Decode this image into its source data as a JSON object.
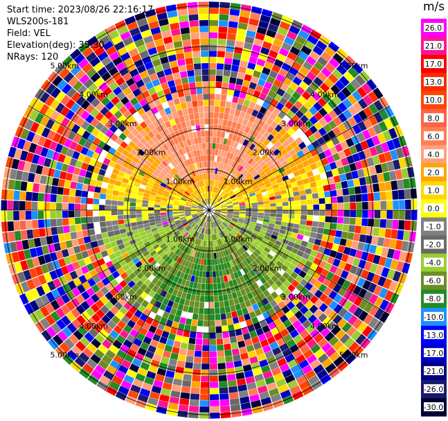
{
  "header": {
    "start_time": "Start time: 2023/08/26 22:16:17",
    "instrument": "WLS200s-181",
    "field": "Field: VEL",
    "elevation": "Elevation(deg): 35.30",
    "nrays": "NRays: 120"
  },
  "chart_data": {
    "type": "heatmap",
    "projection": "polar PPI",
    "field": "VEL",
    "units": "m/s",
    "nrays": 120,
    "range_rings_km": [
      "1.00km",
      "2.00km",
      "3.00km",
      "4.00km",
      "5.00km"
    ],
    "max_range_km": 5.1,
    "colorbar": {
      "unit_label": "m/s",
      "ticks": [
        "26.0",
        "21.0",
        "17.0",
        "13.0",
        "10.0",
        "8.0",
        "6.0",
        "4.0",
        "2.0",
        "1.0",
        "0.0",
        "-1.0",
        "-2.0",
        "-4.0",
        "-6.0",
        "-8.0",
        "-10.0",
        "-13.0",
        "-17.0",
        "-21.0",
        "-26.0",
        "-30.0"
      ],
      "colors": [
        "#ff00ff",
        "#ff1493",
        "#ff0000",
        "#ff2a00",
        "#ff4500",
        "#ff6347",
        "#ff7f50",
        "#ffa07a",
        "#ffa500",
        "#ffd700",
        "#ffff00",
        "#808080",
        "#696969",
        "#9acd32",
        "#6b8e23",
        "#228b22",
        "#1e90ff",
        "#0000ff",
        "#0000cd",
        "#000080",
        "#191970",
        "#000033"
      ]
    },
    "near_field_pattern": {
      "north": "positive (yellow/orange)",
      "south": "negative (green/blue)",
      "horizon": "near zero (gray)"
    },
    "far_field_pattern": "noisy multicolor beyond ~3.0km"
  }
}
